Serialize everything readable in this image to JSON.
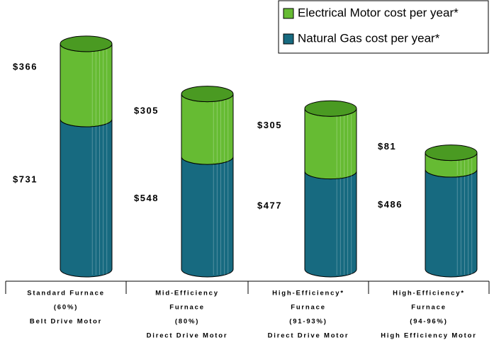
{
  "chart_data": {
    "type": "stacked_bar",
    "categories": [
      [
        "Standard Furnace",
        "(60%)",
        "Belt Drive Motor"
      ],
      [
        "Mid-Efficiency",
        "Furnace",
        "(80%)",
        "Direct Drive Motor"
      ],
      [
        "High-Efficiency*",
        "Furnace",
        "(91-93%)",
        "Direct Drive Motor"
      ],
      [
        "High-Efficiency*",
        "Furnace",
        "(94-96%)",
        "High Efficiency Motor"
      ]
    ],
    "series": [
      {
        "name": "Natural Gas cost per year*",
        "color": "#176a80",
        "values": [
          731,
          548,
          477,
          486
        ],
        "value_labels": [
          "$731",
          "$548",
          "$477",
          "$486"
        ]
      },
      {
        "name": "Electrical Motor cost per year*",
        "color": "#66bb33",
        "values": [
          366,
          305,
          305,
          81
        ],
        "value_labels": [
          "$366",
          "$305",
          "$305",
          "$81"
        ]
      }
    ],
    "legend": "top-right"
  }
}
